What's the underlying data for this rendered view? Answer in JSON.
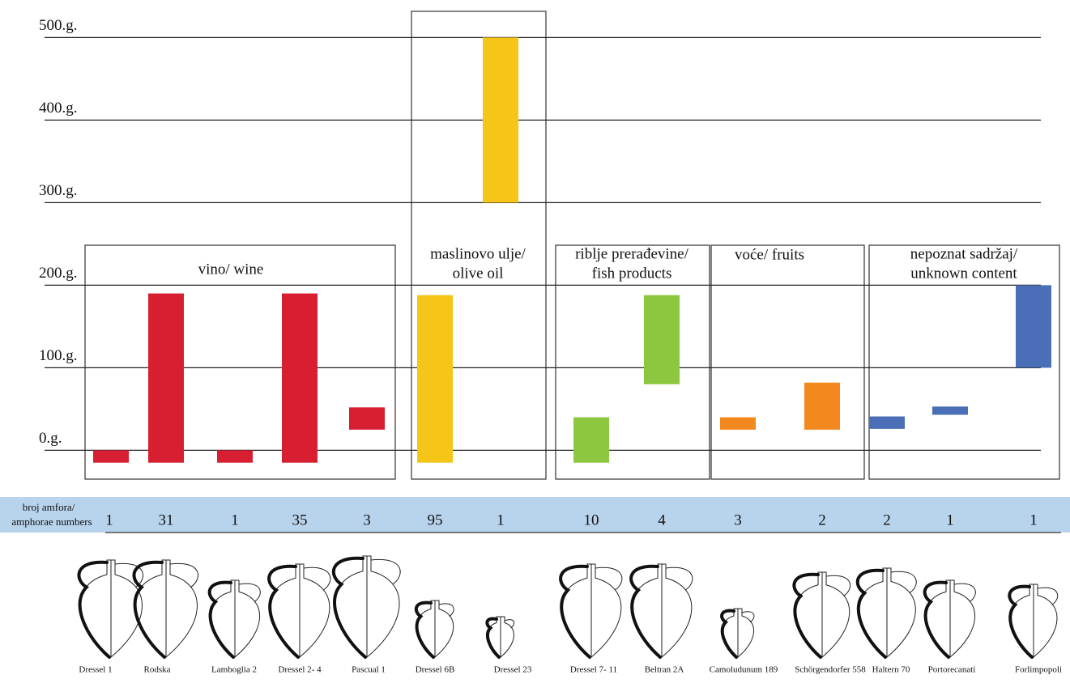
{
  "chart_data": {
    "type": "floating_bar",
    "ylim": [
      -30,
      520
    ],
    "yticks": [
      {
        "value": 0,
        "label": "0.g."
      },
      {
        "value": 100,
        "label": "100.g."
      },
      {
        "value": 200,
        "label": "200.g."
      },
      {
        "value": 300,
        "label": "300.g."
      },
      {
        "value": 400,
        "label": "400.g."
      },
      {
        "value": 500,
        "label": "500.g."
      }
    ],
    "categories": [
      "Dressel 1",
      "Rodska",
      "Lamboglia 2",
      "Dressel 2- 4",
      "Pascual 1",
      "Dressel 6B",
      "Dressel 23",
      "Dressel 7- 11",
      "Beltran 2A",
      "Camoludunum 189",
      "Schörgendorfer 558",
      "Haltern 70",
      "Portorecanati",
      "Forlimpopoli"
    ],
    "starts": [
      -15,
      -15,
      -15,
      -15,
      25,
      -15,
      300,
      -15,
      80,
      25,
      25,
      26,
      43,
      100
    ],
    "ends": [
      0,
      190,
      0,
      190,
      52,
      188,
      500,
      40,
      188,
      40,
      82,
      41,
      53,
      200
    ],
    "colors": [
      "#d81f32",
      "#d81f32",
      "#d81f32",
      "#d81f32",
      "#d81f32",
      "#f5c618",
      "#f5c618",
      "#8dc63f",
      "#8dc63f",
      "#f3881f",
      "#f3881f",
      "#4a6fb6",
      "#4a6fb6",
      "#4a6fb6"
    ],
    "groups": [
      {
        "label": [
          "vino/ wine"
        ]
      },
      {
        "label": [
          "maslinovo ulje/",
          "olive oil"
        ]
      },
      {
        "label": [
          "riblje prerađevine/",
          "fish products"
        ]
      },
      {
        "label": [
          "voće/ fruits"
        ]
      },
      {
        "label": [
          "nepoznat sadržaj/",
          "unknown content"
        ]
      }
    ],
    "count_label": [
      "broj amfora/",
      "amphorae numbers"
    ],
    "counts": [
      1,
      31,
      1,
      35,
      3,
      95,
      1,
      10,
      4,
      3,
      2,
      2,
      1,
      1
    ]
  }
}
